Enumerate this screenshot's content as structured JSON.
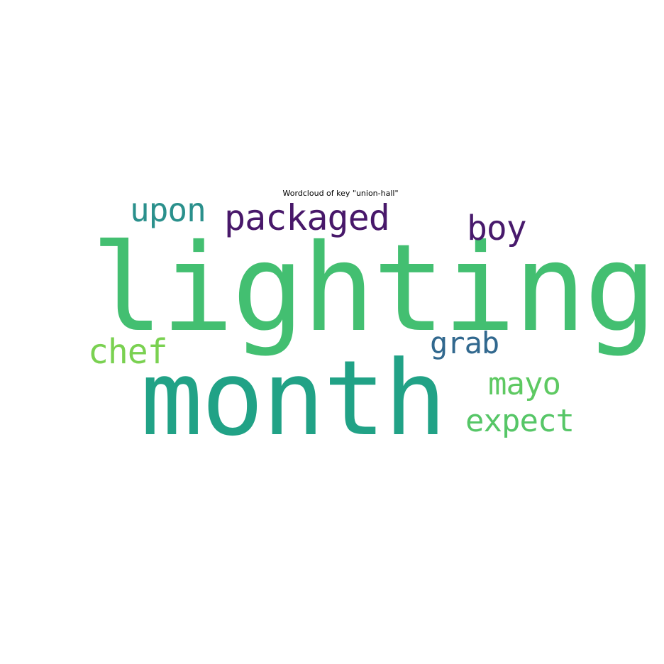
{
  "chart_data": {
    "type": "wordcloud",
    "title": "Wordcloud of key \"union-hall\"",
    "words": [
      {
        "text": "lighting",
        "color": "#43bf71"
      },
      {
        "text": "month",
        "color": "#21a286"
      },
      {
        "text": "packaged",
        "color": "#48186a"
      },
      {
        "text": "upon",
        "color": "#2a908c"
      },
      {
        "text": "boy",
        "color": "#481a6c"
      },
      {
        "text": "grab",
        "color": "#31688e"
      },
      {
        "text": "chef",
        "color": "#7ad151"
      },
      {
        "text": "mayo",
        "color": "#5ec962"
      },
      {
        "text": "expect",
        "color": "#56c667"
      }
    ]
  }
}
